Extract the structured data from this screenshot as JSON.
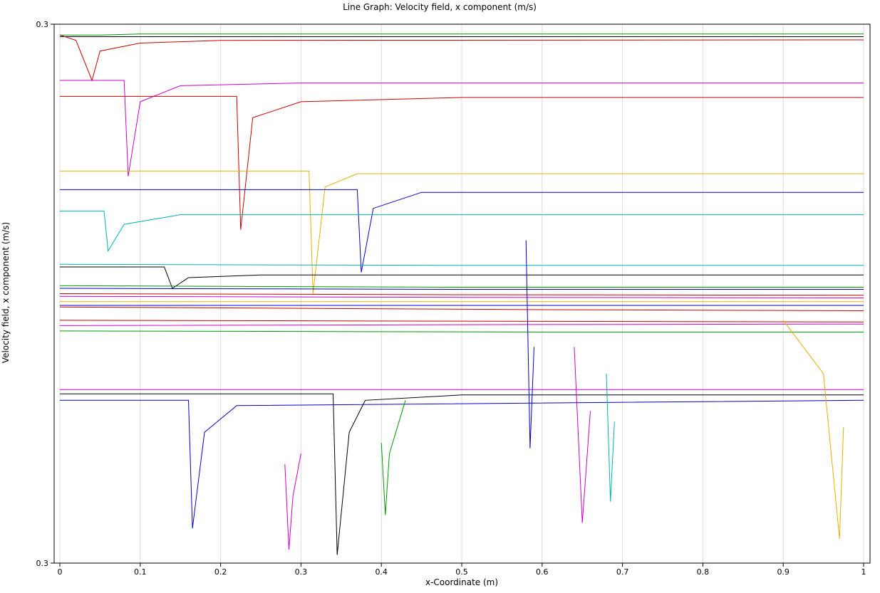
{
  "chart_data": {
    "type": "line",
    "title": "Line Graph: Velocity field, x component (m/s)",
    "xlabel": "x-Coordinate (m)",
    "ylabel": "Velocity field, x component (m/s)",
    "xlim": [
      0,
      1
    ],
    "ylim": [
      0,
      1
    ],
    "x_ticks": [
      0,
      0.1,
      0.2,
      0.3,
      0.4,
      0.5,
      0.6,
      0.7,
      0.8,
      0.9,
      1
    ],
    "x_tick_labels": [
      "0",
      "0.1",
      "0.2",
      "0.3",
      "0.4",
      "0.5",
      "0.6",
      "0.7",
      "0.8",
      "0.9",
      "1"
    ],
    "y_tick_labels": [
      "0.3",
      "0.3"
    ],
    "grid": true,
    "legend": "none",
    "palette": [
      "#0000cc",
      "#00b3b3",
      "#009900",
      "#cc0000",
      "#cc00cc",
      "#e6b000",
      "#000000"
    ],
    "series": [
      {
        "color": "#009900",
        "values": [
          [
            0.0,
            0.985
          ],
          [
            0.05,
            0.985
          ],
          [
            0.1,
            0.987
          ],
          [
            1.0,
            0.987
          ]
        ]
      },
      {
        "color": "#000000",
        "values": [
          [
            0.0,
            0.982
          ],
          [
            0.5,
            0.982
          ],
          [
            1.0,
            0.982
          ]
        ]
      },
      {
        "color": "#cc0000",
        "values": [
          [
            0.0,
            0.985
          ],
          [
            0.02,
            0.975
          ],
          [
            0.04,
            0.9
          ],
          [
            0.05,
            0.955
          ],
          [
            0.1,
            0.97
          ],
          [
            0.2,
            0.975
          ],
          [
            1.0,
            0.976
          ]
        ]
      },
      {
        "color": "#cc00cc",
        "values": [
          [
            0.0,
            0.9
          ],
          [
            0.08,
            0.9
          ],
          [
            0.085,
            0.72
          ],
          [
            0.1,
            0.86
          ],
          [
            0.15,
            0.89
          ],
          [
            0.3,
            0.895
          ],
          [
            1.0,
            0.895
          ]
        ]
      },
      {
        "color": "#cc0000",
        "values": [
          [
            0.0,
            0.87
          ],
          [
            0.22,
            0.87
          ],
          [
            0.225,
            0.62
          ],
          [
            0.24,
            0.83
          ],
          [
            0.3,
            0.86
          ],
          [
            0.5,
            0.868
          ],
          [
            1.0,
            0.868
          ]
        ]
      },
      {
        "color": "#e6b000",
        "values": [
          [
            0.0,
            0.73
          ],
          [
            0.31,
            0.73
          ],
          [
            0.315,
            0.5
          ],
          [
            0.33,
            0.7
          ],
          [
            0.37,
            0.725
          ],
          [
            1.0,
            0.725
          ]
        ]
      },
      {
        "color": "#0000cc",
        "values": [
          [
            0.0,
            0.695
          ],
          [
            0.37,
            0.695
          ],
          [
            0.375,
            0.54
          ],
          [
            0.39,
            0.66
          ],
          [
            0.45,
            0.69
          ],
          [
            1.0,
            0.69
          ]
        ]
      },
      {
        "color": "#00b3b3",
        "values": [
          [
            0.0,
            0.655
          ],
          [
            0.055,
            0.655
          ],
          [
            0.06,
            0.58
          ],
          [
            0.08,
            0.63
          ],
          [
            0.15,
            0.648
          ],
          [
            1.0,
            0.648
          ]
        ]
      },
      {
        "color": "#00b3b3",
        "values": [
          [
            0.0,
            0.555
          ],
          [
            0.5,
            0.553
          ],
          [
            1.0,
            0.553
          ]
        ]
      },
      {
        "color": "#000000",
        "values": [
          [
            0.0,
            0.55
          ],
          [
            0.13,
            0.55
          ],
          [
            0.14,
            0.51
          ],
          [
            0.16,
            0.53
          ],
          [
            0.25,
            0.535
          ],
          [
            1.0,
            0.535
          ]
        ]
      },
      {
        "color": "#0000cc",
        "values": [
          [
            0.0,
            0.51
          ],
          [
            0.5,
            0.508
          ],
          [
            1.0,
            0.508
          ]
        ]
      },
      {
        "color": "#009900",
        "values": [
          [
            0.0,
            0.515
          ],
          [
            0.5,
            0.512
          ],
          [
            1.0,
            0.512
          ]
        ]
      },
      {
        "color": "#cc0000",
        "values": [
          [
            0.0,
            0.5
          ],
          [
            0.5,
            0.498
          ],
          [
            1.0,
            0.497
          ]
        ]
      },
      {
        "color": "#cc00cc",
        "values": [
          [
            0.0,
            0.495
          ],
          [
            0.5,
            0.493
          ],
          [
            1.0,
            0.492
          ]
        ]
      },
      {
        "color": "#e6b000",
        "values": [
          [
            0.0,
            0.485
          ],
          [
            0.5,
            0.485
          ],
          [
            1.0,
            0.485
          ]
        ]
      },
      {
        "color": "#0000cc",
        "values": [
          [
            0.0,
            0.478
          ],
          [
            0.6,
            0.478
          ],
          [
            1.0,
            0.478
          ]
        ]
      },
      {
        "color": "#cc0000",
        "values": [
          [
            0.0,
            0.475
          ],
          [
            0.6,
            0.47
          ],
          [
            1.0,
            0.468
          ]
        ]
      },
      {
        "color": "#cc0000",
        "values": [
          [
            0.0,
            0.45
          ],
          [
            0.6,
            0.448
          ],
          [
            1.0,
            0.447
          ]
        ]
      },
      {
        "color": "#cc00cc",
        "values": [
          [
            0.0,
            0.44
          ],
          [
            0.6,
            0.442
          ],
          [
            1.0,
            0.443
          ]
        ]
      },
      {
        "color": "#009900",
        "values": [
          [
            0.0,
            0.43
          ],
          [
            0.6,
            0.428
          ],
          [
            1.0,
            0.428
          ]
        ]
      },
      {
        "color": "#cc00cc",
        "values": [
          [
            0.0,
            0.32
          ],
          [
            0.5,
            0.32
          ],
          [
            1.0,
            0.32
          ]
        ]
      },
      {
        "color": "#000000",
        "values": [
          [
            0.0,
            0.312
          ],
          [
            0.34,
            0.312
          ],
          [
            0.345,
            0.01
          ],
          [
            0.36,
            0.24
          ],
          [
            0.38,
            0.3
          ],
          [
            0.5,
            0.31
          ],
          [
            1.0,
            0.31
          ]
        ]
      },
      {
        "color": "#0000cc",
        "values": [
          [
            0.0,
            0.3
          ],
          [
            0.16,
            0.3
          ],
          [
            0.165,
            0.06
          ],
          [
            0.18,
            0.24
          ],
          [
            0.22,
            0.29
          ],
          [
            1.0,
            0.3
          ]
        ]
      },
      {
        "color": "#cc00cc",
        "values": [
          [
            0.28,
            0.18
          ],
          [
            0.285,
            0.02
          ],
          [
            0.29,
            0.12
          ],
          [
            0.3,
            0.2
          ]
        ]
      },
      {
        "color": "#009900",
        "values": [
          [
            0.4,
            0.22
          ],
          [
            0.405,
            0.085
          ],
          [
            0.41,
            0.2
          ],
          [
            0.43,
            0.3
          ]
        ]
      },
      {
        "color": "#e6b000",
        "values": [
          [
            0.9,
            0.45
          ],
          [
            0.95,
            0.35
          ],
          [
            0.97,
            0.04
          ],
          [
            0.975,
            0.25
          ]
        ]
      },
      {
        "color": "#cc00cc",
        "values": [
          [
            0.64,
            0.4
          ],
          [
            0.65,
            0.07
          ],
          [
            0.66,
            0.28
          ]
        ]
      },
      {
        "color": "#00b3b3",
        "values": [
          [
            0.68,
            0.35
          ],
          [
            0.685,
            0.11
          ],
          [
            0.69,
            0.26
          ]
        ]
      },
      {
        "color": "#0000cc",
        "values": [
          [
            0.58,
            0.6
          ],
          [
            0.585,
            0.21
          ],
          [
            0.59,
            0.4
          ]
        ]
      }
    ]
  }
}
